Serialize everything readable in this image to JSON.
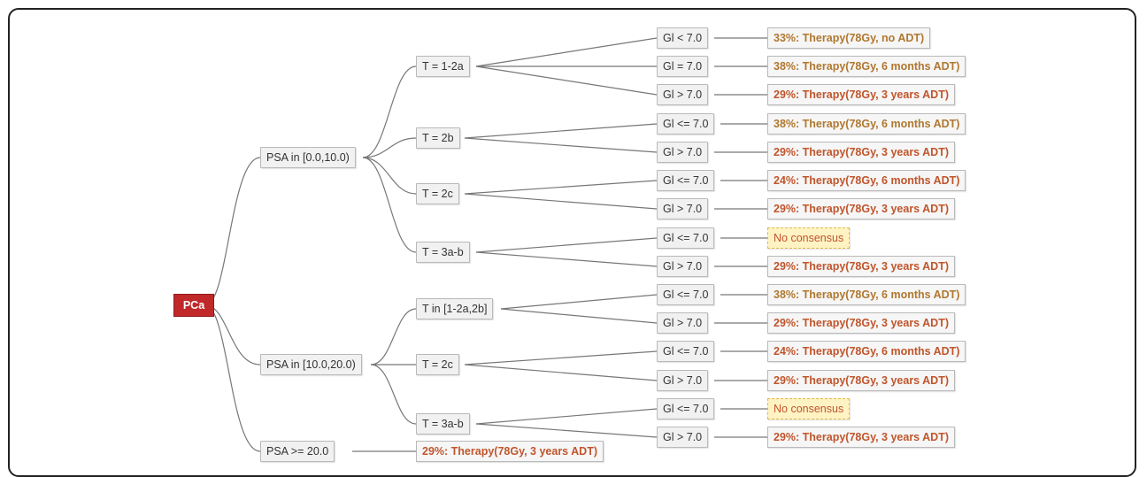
{
  "root": {
    "label": "PCa",
    "color": "#c0282a"
  },
  "psa": [
    "PSA in [0.0,10.0)",
    "PSA in [10.0,20.0)",
    "PSA >= 20.0"
  ],
  "t": [
    "T = 1-2a",
    "T = 2b",
    "T = 2c",
    "T = 3a-b",
    "T in [1-2a,2b]",
    "T = 2c",
    "T = 3a-b"
  ],
  "gl": [
    "Gl < 7.0",
    "Gl = 7.0",
    "Gl > 7.0",
    "Gl <= 7.0",
    "Gl > 7.0",
    "Gl <= 7.0",
    "Gl > 7.0",
    "Gl <= 7.0",
    "Gl > 7.0",
    "Gl <= 7.0",
    "Gl > 7.0",
    "Gl <= 7.0",
    "Gl > 7.0",
    "Gl <= 7.0",
    "Gl > 7.0"
  ],
  "outcomes": [
    {
      "label": "33%: Therapy(78Gy, no ADT)",
      "color": "#b0772f"
    },
    {
      "label": "38%: Therapy(78Gy, 6 months ADT)",
      "color": "#b0772f"
    },
    {
      "label": "29%: Therapy(78Gy, 3 years ADT)",
      "color": "#c0552c"
    },
    {
      "label": "38%: Therapy(78Gy, 6 months ADT)",
      "color": "#b0772f"
    },
    {
      "label": "29%: Therapy(78Gy, 3 years ADT)",
      "color": "#c0552c"
    },
    {
      "label": "24%: Therapy(78Gy, 6 months ADT)",
      "color": "#c0552c"
    },
    {
      "label": "29%: Therapy(78Gy, 3 years ADT)",
      "color": "#c0552c"
    },
    {
      "label": "No consensus",
      "color": "#c0552c",
      "no_consensus": true
    },
    {
      "label": "29%: Therapy(78Gy, 3 years ADT)",
      "color": "#c0552c"
    },
    {
      "label": "38%: Therapy(78Gy, 6 months ADT)",
      "color": "#b0772f"
    },
    {
      "label": "29%: Therapy(78Gy, 3 years ADT)",
      "color": "#c0552c"
    },
    {
      "label": "24%: Therapy(78Gy, 6 months ADT)",
      "color": "#c0552c"
    },
    {
      "label": "29%: Therapy(78Gy, 3 years ADT)",
      "color": "#c0552c"
    },
    {
      "label": "No consensus",
      "color": "#c0552c",
      "no_consensus": true
    },
    {
      "label": "29%: Therapy(78Gy, 3 years ADT)",
      "color": "#c0552c"
    }
  ],
  "psa_high_outcome": {
    "label": "29%: Therapy(78Gy, 3 years ADT)",
    "color": "#c0552c"
  }
}
